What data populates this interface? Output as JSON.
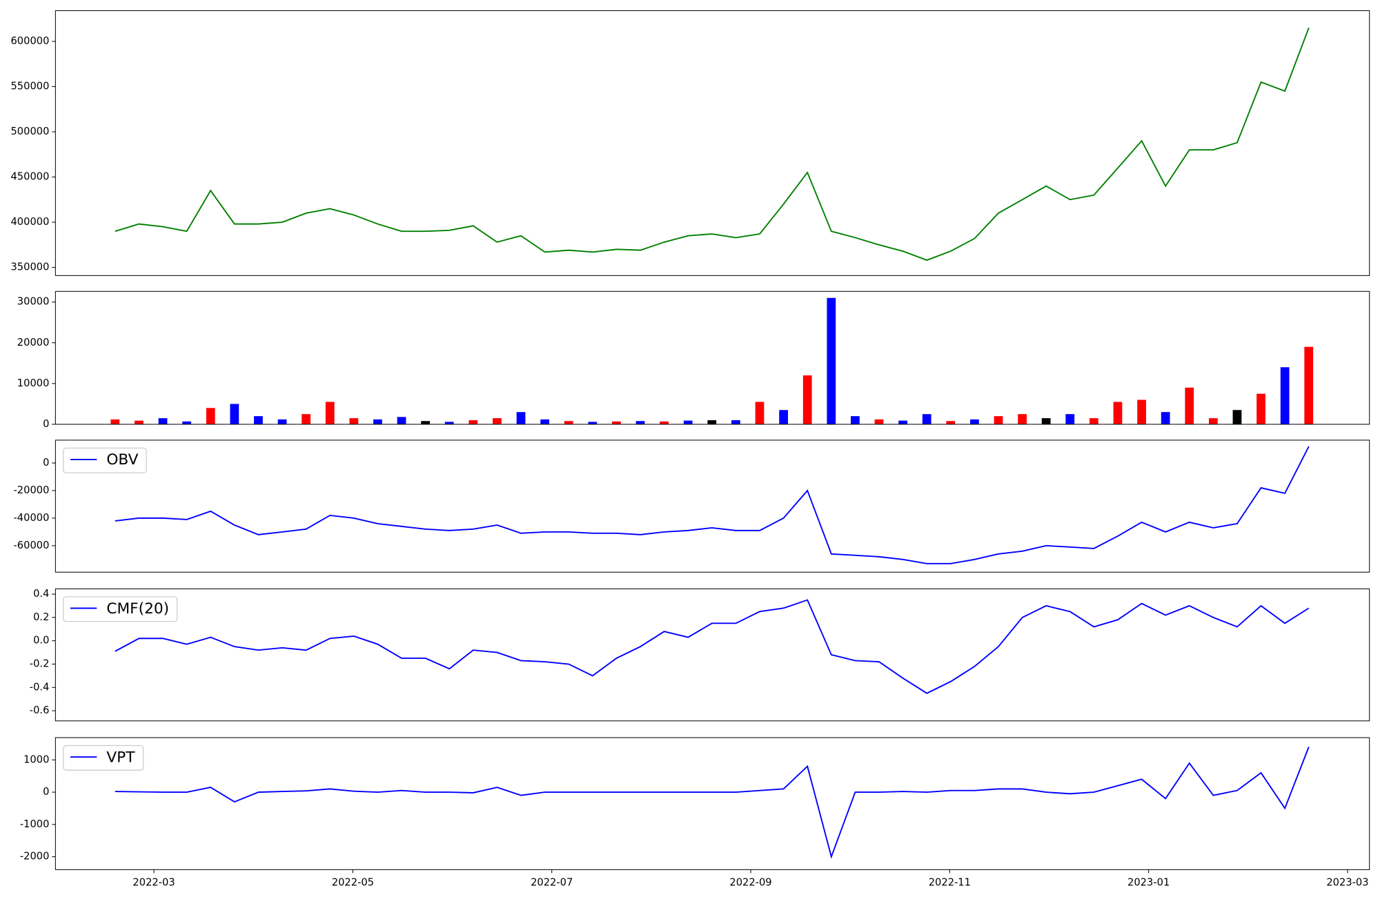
{
  "chart_data": [
    {
      "type": "line",
      "color": "green",
      "x": [
        2.61,
        2.85,
        3.09,
        3.33,
        3.57,
        3.81,
        4.05,
        4.29,
        4.53,
        4.77,
        5.01,
        5.25,
        5.49,
        5.73,
        5.97,
        6.21,
        6.45,
        6.69,
        6.93,
        7.17,
        7.41,
        7.65,
        7.89,
        8.13,
        8.37,
        8.61,
        8.85,
        9.09,
        9.33,
        9.57,
        9.81,
        10.05,
        10.29,
        10.53,
        10.77,
        11.01,
        11.25,
        11.49,
        11.73,
        11.97,
        12.21,
        12.45,
        12.69,
        12.93,
        13.17,
        13.41,
        13.65,
        13.89,
        14.13,
        14.37,
        14.61
      ],
      "values": [
        390000,
        398000,
        395000,
        390000,
        435000,
        398000,
        398000,
        400000,
        410000,
        415000,
        408000,
        398000,
        390000,
        390000,
        391000,
        396000,
        378000,
        385000,
        367000,
        369000,
        367000,
        370000,
        369000,
        378000,
        385000,
        387000,
        383000,
        387000,
        420000,
        455000,
        390000,
        383000,
        375000,
        368000,
        358000,
        368000,
        382000,
        410000,
        425000,
        440000,
        425000,
        430000,
        460000,
        490000,
        440000,
        480000,
        480000,
        488000,
        555000,
        545000,
        615000
      ],
      "xlim": [
        2.01,
        15.22
      ],
      "ylim": [
        341000,
        634000
      ],
      "yticks": [
        350000,
        400000,
        450000,
        500000,
        550000,
        600000
      ]
    },
    {
      "type": "bar",
      "x": [
        2.61,
        2.85,
        3.09,
        3.33,
        3.57,
        3.81,
        4.05,
        4.29,
        4.53,
        4.77,
        5.01,
        5.25,
        5.49,
        5.73,
        5.97,
        6.21,
        6.45,
        6.69,
        6.93,
        7.17,
        7.41,
        7.65,
        7.89,
        8.13,
        8.37,
        8.61,
        8.85,
        9.09,
        9.33,
        9.57,
        9.81,
        10.05,
        10.29,
        10.53,
        10.77,
        11.01,
        11.25,
        11.49,
        11.73,
        11.97,
        12.21,
        12.45,
        12.69,
        12.93,
        13.17,
        13.41,
        13.65,
        13.89,
        14.13,
        14.37,
        14.61
      ],
      "values": [
        1200,
        900,
        1500,
        700,
        4000,
        5000,
        2000,
        1200,
        2500,
        5500,
        1500,
        1200,
        1800,
        800,
        600,
        1000,
        1500,
        3000,
        1200,
        800,
        600,
        700,
        800,
        700,
        900,
        1000,
        1000,
        5500,
        3500,
        12000,
        31000,
        2000,
        1200,
        900,
        2500,
        800,
        1200,
        2000,
        2500,
        1500,
        2500,
        1500,
        5500,
        6000,
        3000,
        9000,
        1500,
        3500,
        7500,
        14000,
        19000
      ],
      "colors": [
        "red",
        "red",
        "blue",
        "blue",
        "red",
        "blue",
        "blue",
        "blue",
        "red",
        "red",
        "red",
        "blue",
        "blue",
        "black",
        "blue",
        "red",
        "red",
        "blue",
        "blue",
        "red",
        "blue",
        "red",
        "blue",
        "red",
        "blue",
        "black",
        "blue",
        "red",
        "blue",
        "red",
        "blue",
        "blue",
        "red",
        "blue",
        "blue",
        "red",
        "blue",
        "red",
        "red",
        "black",
        "blue",
        "red",
        "red",
        "red",
        "blue",
        "red",
        "red",
        "black",
        "red",
        "blue",
        "red"
      ],
      "xlim": [
        2.01,
        15.22
      ],
      "ylim": [
        0,
        32600
      ],
      "yticks": [
        0,
        10000,
        20000,
        30000
      ]
    },
    {
      "type": "line",
      "legend": "upper left",
      "x": [
        2.61,
        2.85,
        3.09,
        3.33,
        3.57,
        3.81,
        4.05,
        4.29,
        4.53,
        4.77,
        5.01,
        5.25,
        5.49,
        5.73,
        5.97,
        6.21,
        6.45,
        6.69,
        6.93,
        7.17,
        7.41,
        7.65,
        7.89,
        8.13,
        8.37,
        8.61,
        8.85,
        9.09,
        9.33,
        9.57,
        9.81,
        10.05,
        10.29,
        10.53,
        10.77,
        11.01,
        11.25,
        11.49,
        11.73,
        11.97,
        12.21,
        12.45,
        12.69,
        12.93,
        13.17,
        13.41,
        13.65,
        13.89,
        14.13,
        14.37,
        14.61
      ],
      "series": [
        {
          "name": "OBV",
          "color": "blue",
          "values": [
            -42000,
            -40000,
            -40000,
            -41000,
            -35000,
            -45000,
            -52000,
            -50000,
            -48000,
            -38000,
            -40000,
            -44000,
            -46000,
            -48000,
            -49000,
            -48000,
            -45000,
            -51000,
            -50000,
            -50000,
            -51000,
            -51000,
            -52000,
            -50000,
            -49000,
            -47000,
            -49000,
            -49000,
            -40000,
            -20000,
            -66000,
            -67000,
            -68000,
            -70000,
            -73000,
            -73000,
            -70000,
            -66000,
            -64000,
            -60000,
            -61000,
            -62000,
            -53000,
            -43000,
            -50000,
            -43000,
            -47000,
            -44000,
            -18000,
            -22000,
            12000
          ]
        }
      ],
      "xlim": [
        2.01,
        15.22
      ],
      "ylim": [
        -79200,
        16600
      ],
      "yticks": [
        -60000,
        -40000,
        -20000,
        0
      ]
    },
    {
      "type": "line",
      "legend": "upper left",
      "x": [
        2.61,
        2.85,
        3.09,
        3.33,
        3.57,
        3.81,
        4.05,
        4.29,
        4.53,
        4.77,
        5.01,
        5.25,
        5.49,
        5.73,
        5.97,
        6.21,
        6.45,
        6.69,
        6.93,
        7.17,
        7.41,
        7.65,
        7.89,
        8.13,
        8.37,
        8.61,
        8.85,
        9.09,
        9.33,
        9.57,
        9.81,
        10.05,
        10.29,
        10.53,
        10.77,
        11.01,
        11.25,
        11.49,
        11.73,
        11.97,
        12.21,
        12.45,
        12.69,
        12.93,
        13.17,
        13.41,
        13.65,
        13.89,
        14.13,
        14.37,
        14.61
      ],
      "series": [
        {
          "name": "CMF(20)",
          "color": "blue",
          "values": [
            -0.09,
            0.02,
            0.02,
            -0.03,
            0.03,
            -0.05,
            -0.08,
            -0.06,
            -0.08,
            0.02,
            0.04,
            -0.03,
            -0.15,
            -0.15,
            -0.24,
            -0.08,
            -0.1,
            -0.17,
            -0.18,
            -0.2,
            -0.3,
            -0.15,
            -0.05,
            0.08,
            0.03,
            0.15,
            0.15,
            0.25,
            0.28,
            0.35,
            -0.12,
            -0.17,
            -0.18,
            -0.32,
            -0.45,
            -0.35,
            -0.22,
            -0.05,
            0.2,
            0.3,
            0.25,
            0.12,
            0.18,
            0.32,
            0.22,
            0.3,
            0.2,
            0.12,
            0.3,
            0.15,
            0.28
          ]
        }
      ],
      "xlim": [
        2.01,
        15.22
      ],
      "ylim": [
        -0.687,
        0.445
      ],
      "yticks": [
        {
          "value": -0.6,
          "label": "-0.6"
        },
        {
          "value": -0.4,
          "label": "-0.4"
        },
        {
          "value": -0.2,
          "label": "-0.2"
        },
        {
          "value": 0,
          "label": "0.0"
        },
        {
          "value": 0.2,
          "label": "0.2"
        },
        {
          "value": 0.4,
          "label": "0.4"
        }
      ]
    },
    {
      "type": "line",
      "legend": "upper left",
      "x": [
        2.61,
        2.85,
        3.09,
        3.33,
        3.57,
        3.81,
        4.05,
        4.29,
        4.53,
        4.77,
        5.01,
        5.25,
        5.49,
        5.73,
        5.97,
        6.21,
        6.45,
        6.69,
        6.93,
        7.17,
        7.41,
        7.65,
        7.89,
        8.13,
        8.37,
        8.61,
        8.85,
        9.09,
        9.33,
        9.57,
        9.81,
        10.05,
        10.29,
        10.53,
        10.77,
        11.01,
        11.25,
        11.49,
        11.73,
        11.97,
        12.21,
        12.45,
        12.69,
        12.93,
        13.17,
        13.41,
        13.65,
        13.89,
        14.13,
        14.37,
        14.61
      ],
      "series": [
        {
          "name": "VPT",
          "color": "blue",
          "values": [
            20,
            10,
            0,
            0,
            150,
            -300,
            0,
            20,
            40,
            100,
            30,
            0,
            50,
            0,
            0,
            -20,
            150,
            -100,
            0,
            0,
            0,
            0,
            0,
            0,
            0,
            0,
            0,
            50,
            100,
            800,
            -2000,
            0,
            0,
            20,
            0,
            50,
            50,
            100,
            100,
            0,
            -50,
            0,
            200,
            400,
            -200,
            900,
            -100,
            50,
            600,
            -500,
            1400
          ]
        }
      ],
      "xlim": [
        2.01,
        15.22
      ],
      "ylim": [
        -2400,
        1690
      ],
      "yticks": [
        -2000,
        -1000,
        0,
        1000
      ],
      "xticks": [
        {
          "value": 3,
          "label": "2022-03"
        },
        {
          "value": 5,
          "label": "2022-05"
        },
        {
          "value": 7,
          "label": "2022-07"
        },
        {
          "value": 9,
          "label": "2022-09"
        },
        {
          "value": 11,
          "label": "2022-11"
        },
        {
          "value": 13,
          "label": "2023-01"
        },
        {
          "value": 15,
          "label": "2023-03"
        }
      ]
    }
  ]
}
